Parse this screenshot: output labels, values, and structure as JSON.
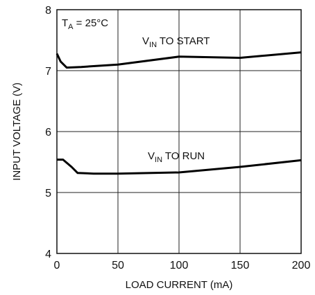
{
  "chart_data": {
    "type": "line",
    "xlabel": "LOAD CURRENT (mA)",
    "ylabel": "INPUT VOLTAGE (V)",
    "xlim": [
      0,
      200
    ],
    "ylim": [
      4,
      8
    ],
    "x_ticks": [
      0,
      50,
      100,
      150,
      200
    ],
    "y_ticks": [
      4,
      5,
      6,
      7,
      8
    ],
    "grid": true,
    "condition": {
      "main": "T",
      "sub": "A",
      "rest": " = 25°C"
    },
    "series": [
      {
        "label_main": "V",
        "label_sub": "IN",
        "label_rest": " TO START",
        "points": [
          [
            0,
            7.28
          ],
          [
            3,
            7.15
          ],
          [
            8,
            7.05
          ],
          [
            20,
            7.06
          ],
          [
            50,
            7.1
          ],
          [
            100,
            7.23
          ],
          [
            150,
            7.21
          ],
          [
            200,
            7.3
          ]
        ]
      },
      {
        "label_main": "V",
        "label_sub": "IN",
        "label_rest": " TO RUN",
        "points": [
          [
            0,
            5.54
          ],
          [
            5,
            5.54
          ],
          [
            12,
            5.42
          ],
          [
            17,
            5.32
          ],
          [
            30,
            5.31
          ],
          [
            50,
            5.31
          ],
          [
            100,
            5.33
          ],
          [
            150,
            5.42
          ],
          [
            200,
            5.53
          ]
        ]
      }
    ]
  }
}
